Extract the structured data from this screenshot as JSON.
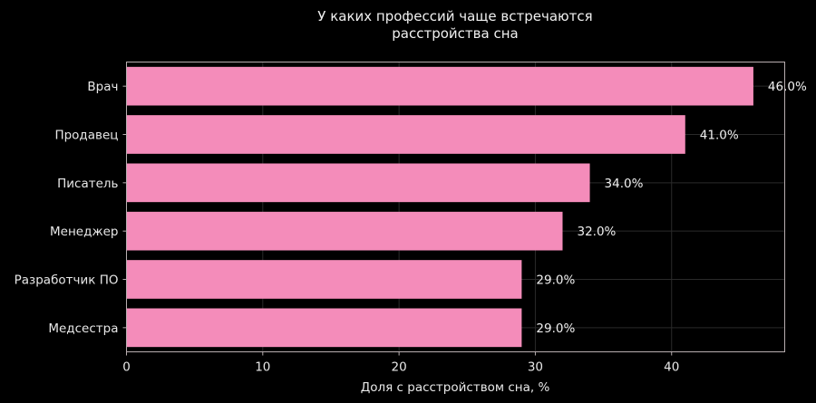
{
  "chart_data": {
    "type": "bar",
    "orientation": "horizontal",
    "title_lines": [
      "У каких профессий чаще встречаются",
      "расстройства сна"
    ],
    "xlabel": "Доля с расстройством сна, %",
    "ylabel": "",
    "categories": [
      "Врач",
      "Продавец",
      "Писатель",
      "Менеджер",
      "Разработчик ПО",
      "Медсестра"
    ],
    "values": [
      46.0,
      41.0,
      34.0,
      32.0,
      29.0,
      29.0
    ],
    "value_labels": [
      "46.0%",
      "41.0%",
      "34.0%",
      "32.0%",
      "29.0%",
      "29.0%"
    ],
    "xticks": [
      0,
      10,
      20,
      30,
      40
    ],
    "xtick_labels": [
      "0",
      "10",
      "20",
      "30",
      "40"
    ],
    "xlim": [
      0,
      48.3
    ],
    "grid": true,
    "colors": {
      "background": "#000000",
      "bar": "#f48cba",
      "frame": "#b8aeb0",
      "grid": "#2a2a2a",
      "text": "#e8e8e8"
    }
  }
}
